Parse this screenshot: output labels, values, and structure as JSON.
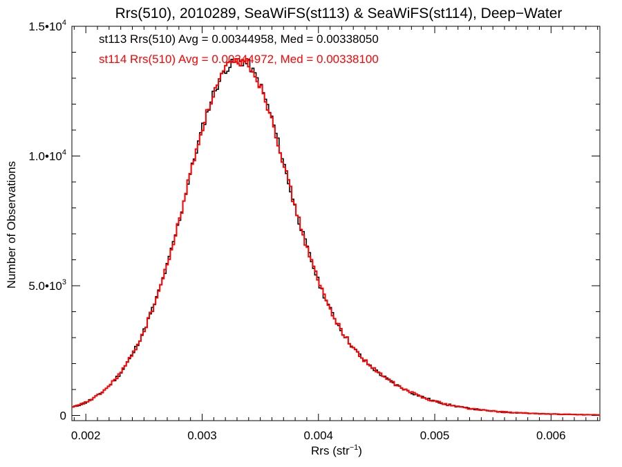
{
  "chart_data": {
    "type": "histogram",
    "title": "Rrs(510), 2010289, SeaWiFS(st113) & SeaWiFS(st114), Deep−Water",
    "xlabel_base": "Rrs (str",
    "xlabel_sup": "−1",
    "xlabel_end": ")",
    "ylabel": "Number of Observations",
    "xlim": [
      0.00188,
      0.00642
    ],
    "ylim": [
      -200,
      15000
    ],
    "x_ticks": [
      {
        "value": 0.002,
        "label": "0.002"
      },
      {
        "value": 0.003,
        "label": "0.003"
      },
      {
        "value": 0.004,
        "label": "0.004"
      },
      {
        "value": 0.005,
        "label": "0.005"
      },
      {
        "value": 0.006,
        "label": "0.006"
      }
    ],
    "y_ticks": [
      {
        "value": 0,
        "base": "0",
        "sup": ""
      },
      {
        "value": 5000,
        "base": "5.0•10",
        "sup": "3"
      },
      {
        "value": 10000,
        "base": "1.0•10",
        "sup": "4"
      },
      {
        "value": 15000,
        "base": "1.5•10",
        "sup": "4"
      }
    ],
    "annotations": [
      {
        "text": "st113 Rrs(510) Avg = 0.00344958, Med = 0.00338050",
        "color": "#000000"
      },
      {
        "text": "st114 Rrs(510) Avg = 0.00344972, Med = 0.00338100",
        "color": "#ff0000"
      }
    ],
    "series": [
      {
        "color": "#000000",
        "points": [
          [
            0.00188,
            300
          ],
          [
            0.002,
            500
          ],
          [
            0.0021,
            760
          ],
          [
            0.0022,
            1140
          ],
          [
            0.0023,
            1640
          ],
          [
            0.0024,
            2340
          ],
          [
            0.0025,
            3260
          ],
          [
            0.0026,
            4400
          ],
          [
            0.0027,
            5780
          ],
          [
            0.0028,
            7450
          ],
          [
            0.0029,
            9350
          ],
          [
            0.003,
            11050
          ],
          [
            0.0031,
            12450
          ],
          [
            0.0032,
            13350
          ],
          [
            0.0033,
            13700
          ],
          [
            0.0034,
            13550
          ],
          [
            0.0035,
            12750
          ],
          [
            0.0036,
            11450
          ],
          [
            0.0037,
            9750
          ],
          [
            0.0038,
            8000
          ],
          [
            0.0039,
            6500
          ],
          [
            0.004,
            5150
          ],
          [
            0.0041,
            4100
          ],
          [
            0.0042,
            3250
          ],
          [
            0.0043,
            2600
          ],
          [
            0.0044,
            2100
          ],
          [
            0.0045,
            1700
          ],
          [
            0.0046,
            1370
          ],
          [
            0.0047,
            1100
          ],
          [
            0.0048,
            880
          ],
          [
            0.0049,
            700
          ],
          [
            0.005,
            550
          ],
          [
            0.0051,
            430
          ],
          [
            0.0052,
            340
          ],
          [
            0.0053,
            270
          ],
          [
            0.0054,
            210
          ],
          [
            0.0055,
            165
          ],
          [
            0.0056,
            130
          ],
          [
            0.0057,
            105
          ],
          [
            0.0058,
            85
          ],
          [
            0.0059,
            70
          ],
          [
            0.006,
            55
          ],
          [
            0.0061,
            45
          ],
          [
            0.0062,
            35
          ],
          [
            0.0063,
            28
          ],
          [
            0.00642,
            20
          ]
        ]
      },
      {
        "color": "#ff0000",
        "points": [
          [
            0.00188,
            290
          ],
          [
            0.002,
            500
          ],
          [
            0.0021,
            750
          ],
          [
            0.0022,
            1130
          ],
          [
            0.0023,
            1650
          ],
          [
            0.0024,
            2330
          ],
          [
            0.0025,
            3250
          ],
          [
            0.0026,
            4410
          ],
          [
            0.0027,
            5790
          ],
          [
            0.0028,
            7440
          ],
          [
            0.0029,
            9360
          ],
          [
            0.003,
            11070
          ],
          [
            0.0031,
            12430
          ],
          [
            0.0032,
            13380
          ],
          [
            0.0033,
            13650
          ],
          [
            0.0034,
            13600
          ],
          [
            0.0035,
            12720
          ],
          [
            0.0036,
            11480
          ],
          [
            0.0037,
            9720
          ],
          [
            0.0038,
            8020
          ],
          [
            0.0039,
            6480
          ],
          [
            0.004,
            5160
          ],
          [
            0.0041,
            4090
          ],
          [
            0.0042,
            3260
          ],
          [
            0.0043,
            2590
          ],
          [
            0.0044,
            2110
          ],
          [
            0.0045,
            1690
          ],
          [
            0.0046,
            1380
          ],
          [
            0.0047,
            1090
          ],
          [
            0.0048,
            885
          ],
          [
            0.0049,
            695
          ],
          [
            0.005,
            555
          ],
          [
            0.0051,
            425
          ],
          [
            0.0052,
            345
          ],
          [
            0.0053,
            265
          ],
          [
            0.0054,
            212
          ],
          [
            0.0055,
            162
          ],
          [
            0.0056,
            132
          ],
          [
            0.0057,
            103
          ],
          [
            0.0058,
            86
          ],
          [
            0.0059,
            68
          ],
          [
            0.006,
            56
          ],
          [
            0.0061,
            44
          ],
          [
            0.0062,
            36
          ],
          [
            0.0063,
            27
          ],
          [
            0.00642,
            20
          ]
        ]
      }
    ]
  }
}
